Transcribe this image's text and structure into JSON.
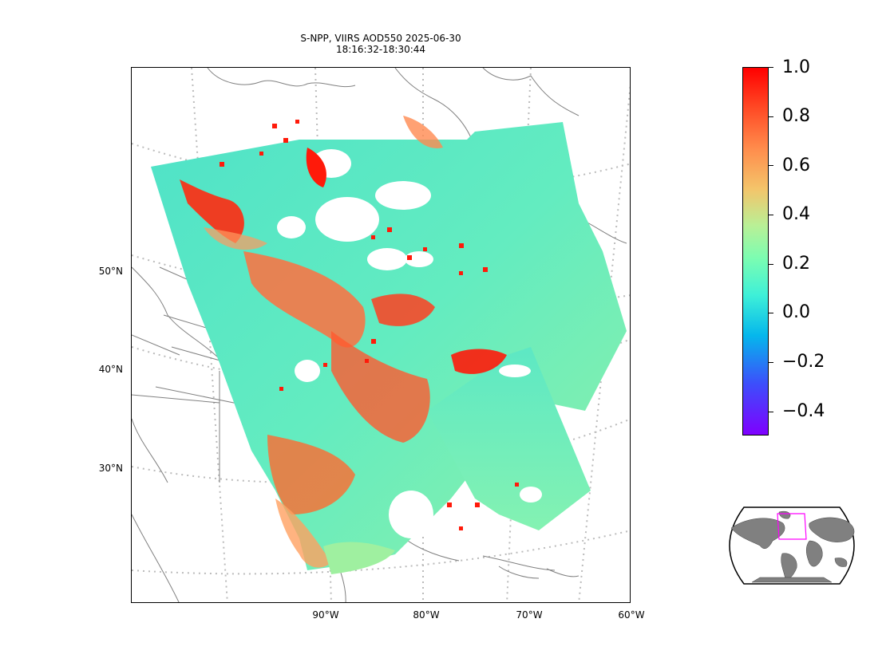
{
  "title": {
    "line1": "S-NPP, VIIRS AOD550 2025-06-30",
    "line2": "18:16:32-18:30:44"
  },
  "lat_labels": [
    "50°N",
    "40°N",
    "30°N"
  ],
  "lon_labels": [
    "90°W",
    "80°W",
    "70°W",
    "60°W"
  ],
  "colorbar": {
    "ticks": [
      "1.0",
      "0.8",
      "0.6",
      "0.4",
      "0.2",
      "0.0",
      "−0.2",
      "−0.4"
    ],
    "colormap": "rainbow",
    "range": [
      -0.5,
      1.0
    ]
  },
  "colors": {
    "coastline": "#808080",
    "gridline": "#bbbbbb",
    "land_inset": "#808080",
    "box_inset": "#ff00ff",
    "swath_base": "#5ee6cc"
  },
  "inset": {
    "type": "global-locator",
    "extent_box": "magenta"
  }
}
